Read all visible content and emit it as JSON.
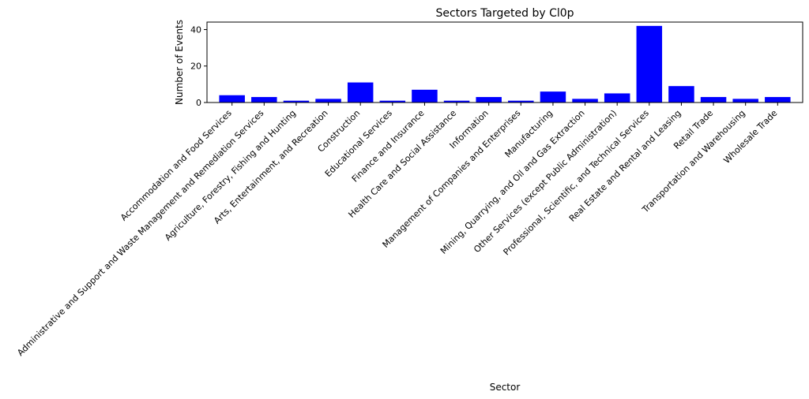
{
  "chart_data": {
    "type": "bar",
    "title": "Sectors Targeted by Cl0p",
    "xlabel": "Sector",
    "ylabel": "Number of Events",
    "categories": [
      "Accommodation and Food Services",
      "Administrative and Support and Waste Management and Remediation Services",
      "Agriculture, Forestry, Fishing and Hunting",
      "Arts, Entertainment, and Recreation",
      "Construction",
      "Educational Services",
      "Finance and Insurance",
      "Health Care and Social Assistance",
      "Information",
      "Management of Companies and Enterprises",
      "Manufacturing",
      "Mining, Quarrying, and Oil and Gas Extraction",
      "Other Services (except Public Administration)",
      "Professional, Scientific, and Technical Services",
      "Real Estate and Rental and Leasing",
      "Retail Trade",
      "Transportation and Warehousing",
      "Wholesale Trade"
    ],
    "values": [
      4,
      3,
      1,
      2,
      11,
      1,
      7,
      1,
      3,
      1,
      6,
      2,
      5,
      42,
      9,
      3,
      2,
      3
    ],
    "ylim": [
      0,
      44.1
    ],
    "yticks": [
      0,
      20,
      40
    ],
    "grid": false,
    "bar_color": "#0000ff"
  }
}
